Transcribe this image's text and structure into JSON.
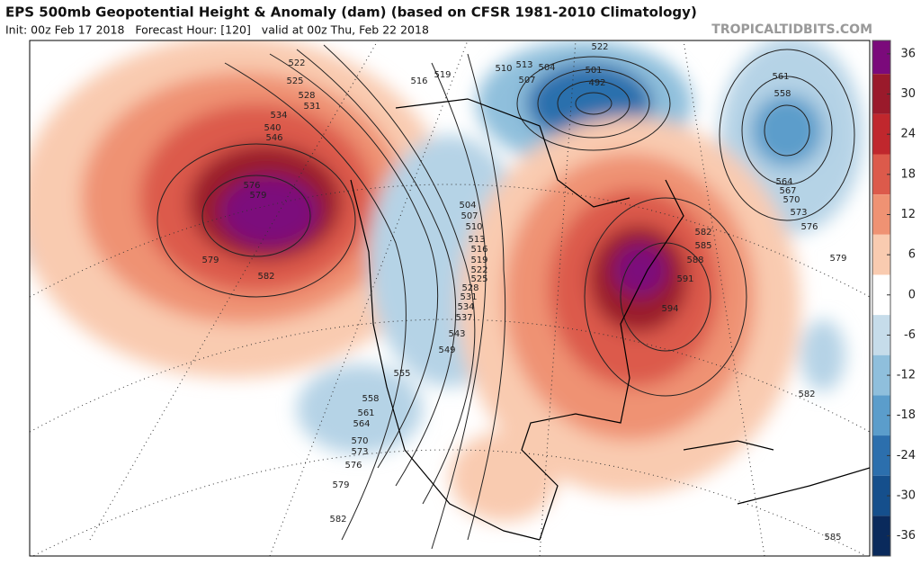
{
  "header": {
    "title": "EPS 500mb Geopotential Height & Anomaly (dam) (based on CFSR 1981-2010 Climatology)",
    "subtitle": "Init: 00z Feb 17 2018   Forecast Hour: [120]   valid at 00z Thu, Feb 22 2018",
    "site": "TROPICALTIDBITS.COM"
  },
  "colorbar": {
    "lim": [
      -39,
      38
    ],
    "ticks": [
      36,
      30,
      24,
      18,
      12,
      6,
      0,
      -6,
      -12,
      -18,
      -24,
      -30,
      -36
    ],
    "colors": [
      "#7b0a7b",
      "#9a1a2b",
      "#c0272d",
      "#dc5a4b",
      "#ef9273",
      "#f9cbb0",
      "#ffffff",
      "#c6dcea",
      "#8fbfdc",
      "#5b9dcb",
      "#2c6fad",
      "#154f8c",
      "#0a2a5c"
    ]
  },
  "contour_labels": [
    522,
    525,
    528,
    531,
    534,
    540,
    546,
    576,
    579,
    579,
    582,
    516,
    519,
    510,
    513,
    507,
    504,
    501,
    492,
    522,
    561,
    558,
    564,
    567,
    570,
    573,
    576,
    579,
    582,
    585,
    588,
    591,
    594,
    504,
    507,
    510,
    513,
    516,
    519,
    522,
    525,
    528,
    531,
    534,
    537,
    543,
    549,
    555,
    558,
    561,
    564,
    570,
    573,
    576,
    579,
    582,
    582,
    585
  ]
}
